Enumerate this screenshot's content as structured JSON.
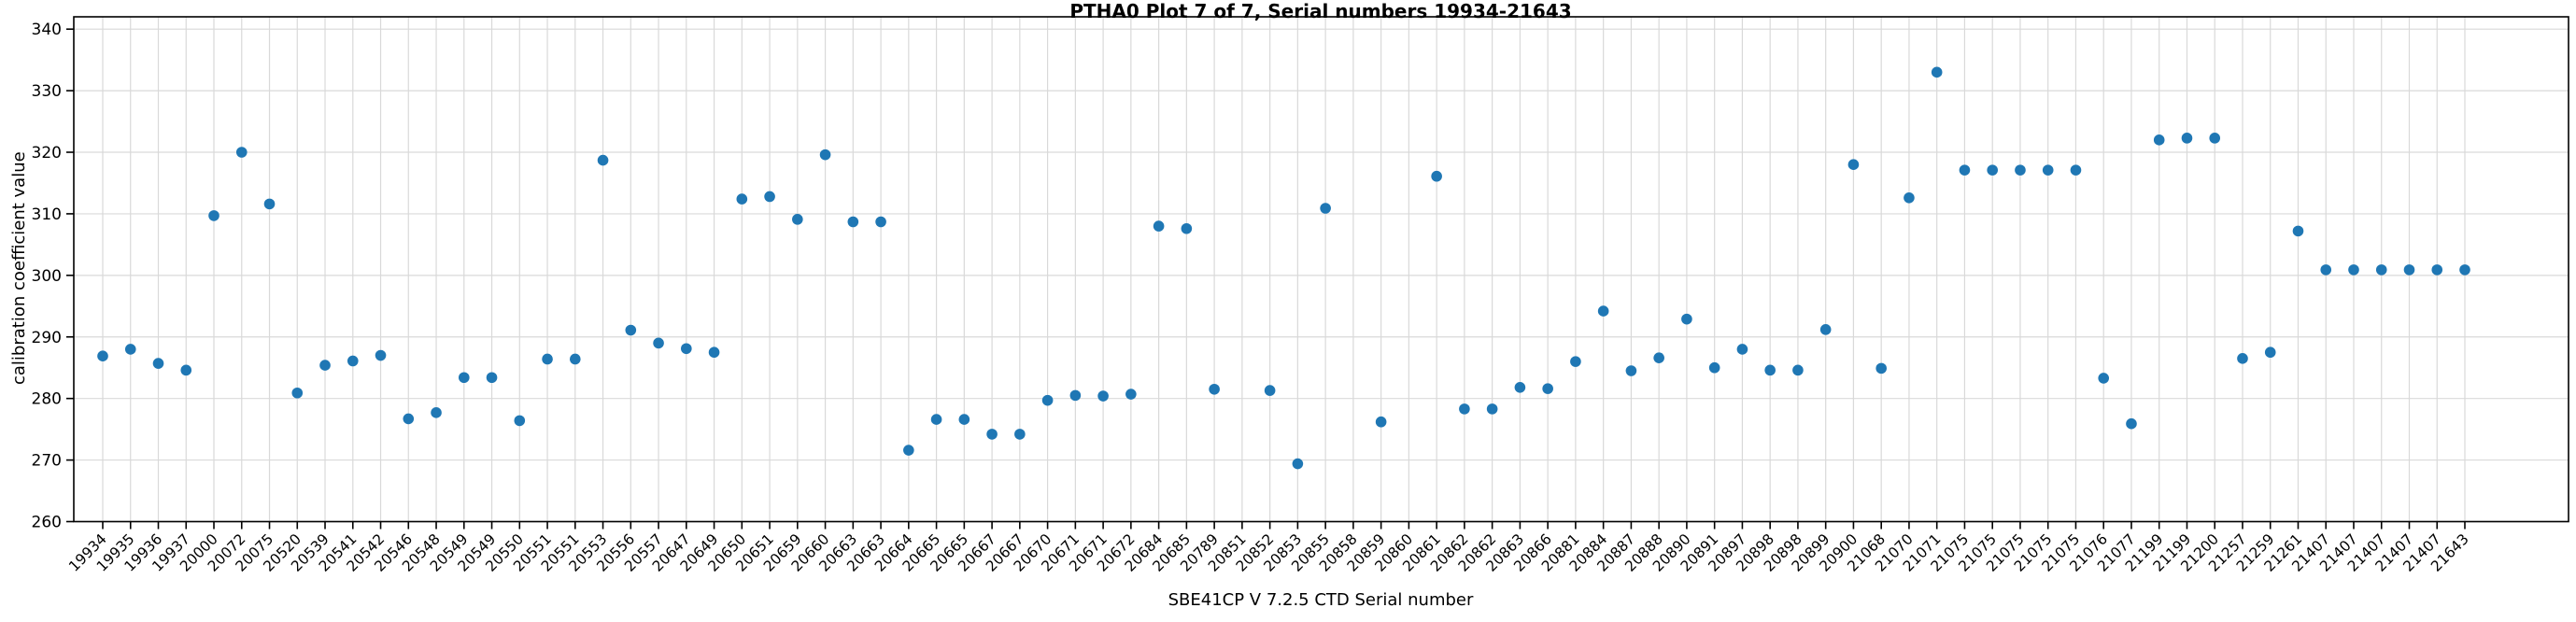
{
  "chart_data": {
    "type": "scatter",
    "title": "PTHA0 Plot 7 of 7, Serial numbers 19934-21643",
    "xlabel": "SBE41CP V 7.2.5 CTD Serial number",
    "ylabel": "calibration coefficient value",
    "ylim": [
      260,
      342
    ],
    "yticks": [
      260,
      270,
      280,
      290,
      300,
      310,
      320,
      330,
      340
    ],
    "grid": true,
    "legend": "none",
    "marker_color": "#1f77b4",
    "grid_color": "#d9d9d9",
    "spine_color": "#000000",
    "categories": [
      "19934",
      "19935",
      "19936",
      "19937",
      "20000",
      "20072",
      "20075",
      "20520",
      "20539",
      "20541",
      "20542",
      "20546",
      "20548",
      "20549",
      "20549",
      "20550",
      "20551",
      "20551",
      "20553",
      "20556",
      "20557",
      "20647",
      "20649",
      "20650",
      "20651",
      "20659",
      "20660",
      "20663",
      "20663",
      "20664",
      "20665",
      "20665",
      "20667",
      "20667",
      "20670",
      "20671",
      "20671",
      "20672",
      "20684",
      "20685",
      "20789",
      "20851",
      "20852",
      "20853",
      "20855",
      "20858",
      "20859",
      "20860",
      "20861",
      "20862",
      "20862",
      "20863",
      "20866",
      "20881",
      "20884",
      "20887",
      "20888",
      "20890",
      "20891",
      "20897",
      "20898",
      "20898",
      "20899",
      "20900",
      "21068",
      "21070",
      "21071",
      "21075",
      "21075",
      "21075",
      "21075",
      "21075",
      "21076",
      "21077",
      "21199",
      "21199",
      "21200",
      "21257",
      "21259",
      "21261",
      "21407",
      "21407",
      "21407",
      "21407",
      "21407",
      "21643"
    ],
    "values": [
      286.9,
      288.0,
      285.7,
      284.6,
      309.7,
      320.0,
      311.6,
      280.9,
      285.4,
      286.1,
      287.0,
      276.7,
      277.7,
      283.4,
      283.4,
      276.4,
      286.4,
      286.4,
      318.7,
      291.1,
      289.0,
      288.1,
      287.5,
      312.4,
      312.8,
      309.1,
      319.6,
      308.7,
      308.7,
      271.6,
      276.6,
      276.6,
      274.2,
      274.2,
      279.7,
      280.5,
      280.4,
      280.7,
      308.0,
      307.6,
      281.5,
      null,
      281.3,
      269.4,
      310.9,
      null,
      276.2,
      null,
      316.1,
      278.3,
      278.3,
      281.8,
      281.6,
      286.0,
      294.2,
      284.5,
      286.6,
      292.9,
      285.0,
      288.0,
      284.6,
      284.6,
      291.2,
      318.0,
      284.9,
      312.6,
      333.0,
      317.1,
      317.1,
      317.1,
      317.1,
      317.1,
      283.3,
      275.9,
      322.0,
      322.3,
      322.3,
      286.5,
      287.5,
      307.2,
      300.9,
      300.9,
      300.9,
      300.9,
      300.9,
      300.9
    ]
  }
}
